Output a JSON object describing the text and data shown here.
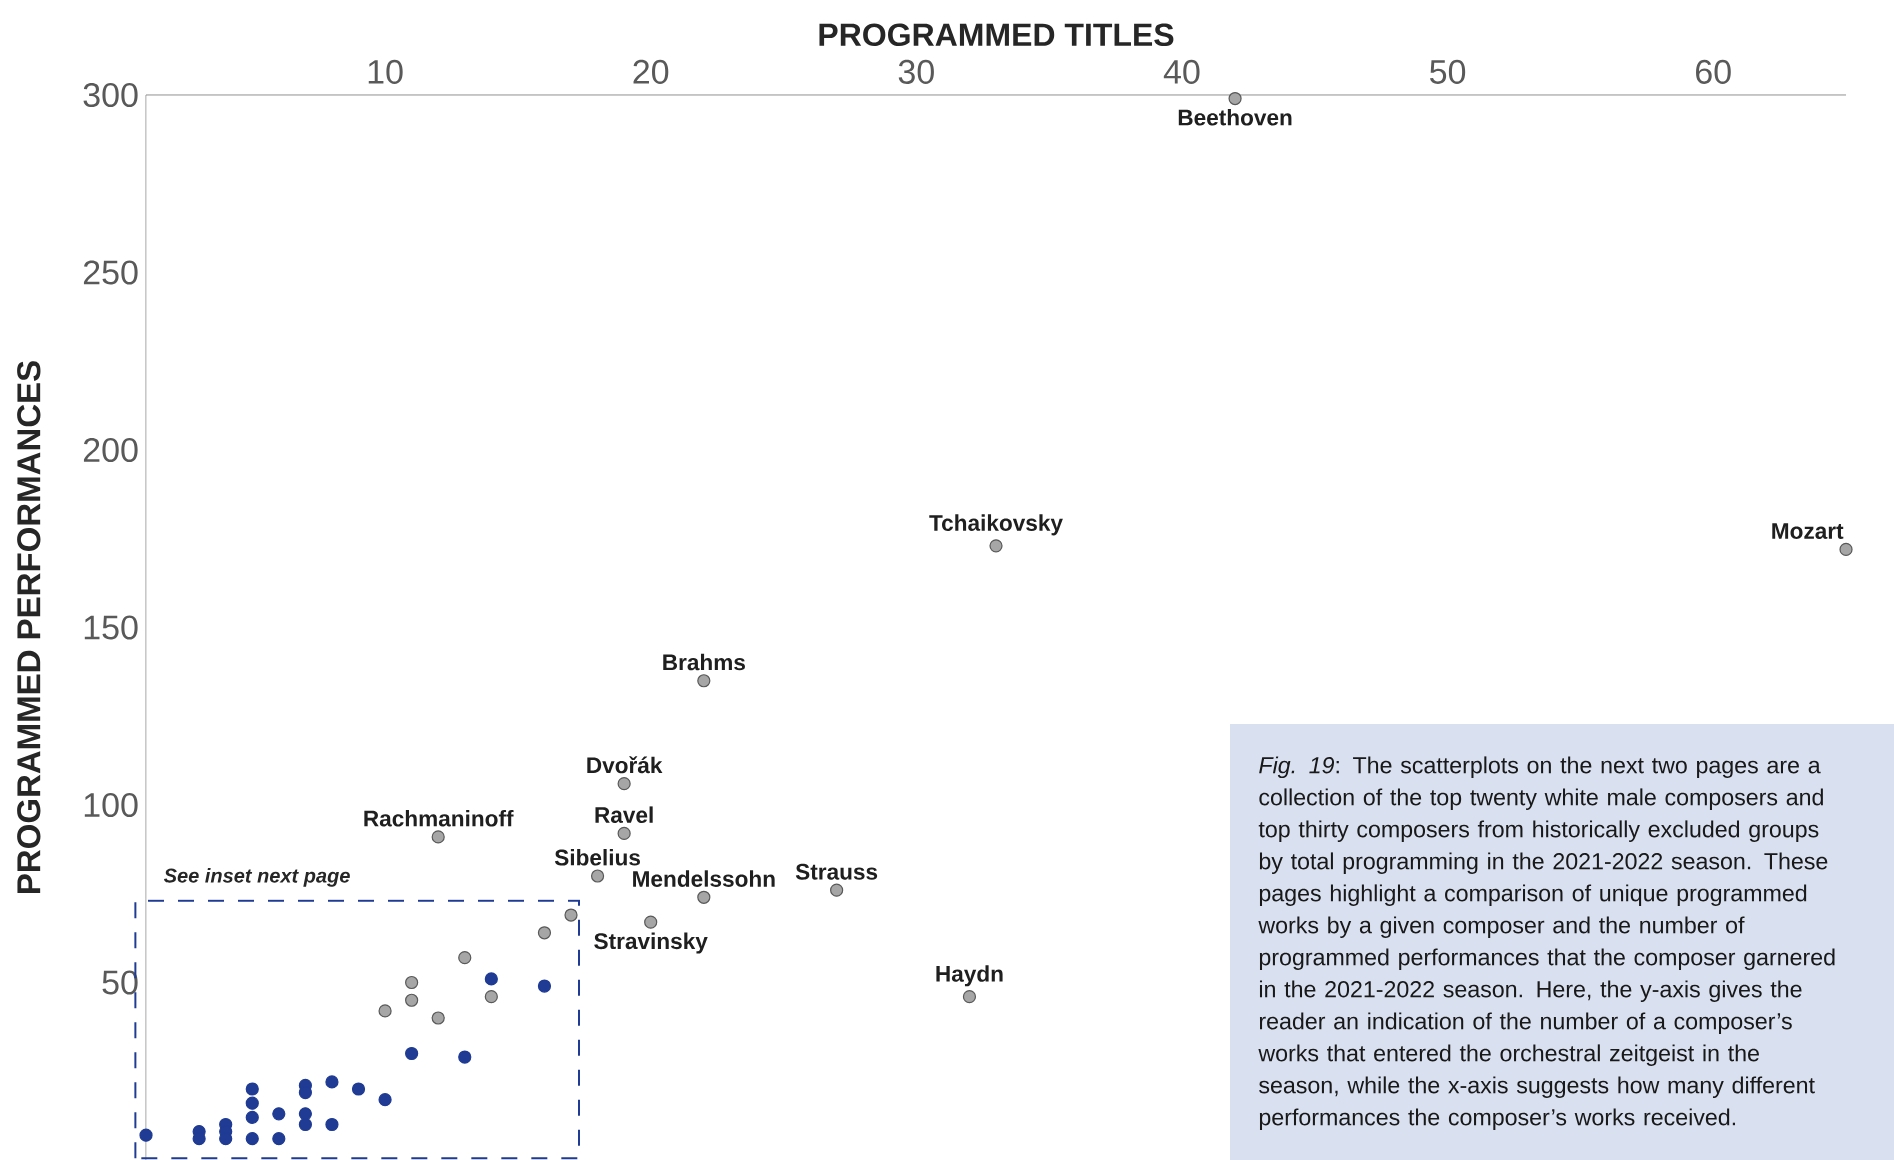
{
  "chart_data": {
    "type": "scatter",
    "xlabel": "PROGRAMMED TITLES",
    "ylabel": "PROGRAMMED PERFORMANCES",
    "xlim": [
      1,
      65
    ],
    "ylim": [
      0,
      300
    ],
    "xticks": [
      10,
      20,
      30,
      40,
      50,
      60
    ],
    "yticks": [
      50,
      100,
      150,
      200,
      250,
      300
    ],
    "grid": false,
    "series": [
      {
        "color": "#a6a6a6",
        "x": [
          42,
          33,
          65,
          22,
          19,
          19,
          12,
          18,
          22,
          27,
          20,
          32,
          17,
          16,
          13,
          11,
          11,
          10,
          12,
          14
        ],
        "values": [
          299,
          173,
          172,
          135,
          106,
          92,
          91,
          80,
          74,
          76,
          67,
          46,
          69,
          64,
          57,
          50,
          45,
          42,
          40,
          46
        ]
      },
      {
        "color": "#1f3b94",
        "x": [
          14,
          16,
          11,
          13,
          8,
          9,
          10,
          7,
          7,
          7,
          7,
          8,
          6,
          6,
          5,
          5,
          5,
          5,
          4,
          4,
          4,
          3,
          3,
          1
        ],
        "values": [
          51,
          49,
          30,
          29,
          22,
          20,
          17,
          21,
          19,
          13,
          10,
          10,
          13,
          6,
          20,
          16,
          12,
          6,
          10,
          8,
          6,
          8,
          6,
          7
        ]
      }
    ],
    "annotations": [
      {
        "text": "Beethoven",
        "x": 42,
        "y": 299
      },
      {
        "text": "Tchaikovsky",
        "x": 33,
        "y": 173
      },
      {
        "text": "Mozart",
        "x": 65,
        "y": 172
      },
      {
        "text": "Brahms",
        "x": 22,
        "y": 135
      },
      {
        "text": "Dvořák",
        "x": 19,
        "y": 106
      },
      {
        "text": "Ravel",
        "x": 19,
        "y": 92
      },
      {
        "text": "Rachmaninoff",
        "x": 12,
        "y": 91
      },
      {
        "text": "Sibelius",
        "x": 18,
        "y": 80
      },
      {
        "text": "Mendelssohn",
        "x": 22,
        "y": 74
      },
      {
        "text": "Strauss",
        "x": 27,
        "y": 76
      },
      {
        "text": "Stravinsky",
        "x": 20,
        "y": 67
      },
      {
        "text": "Haydn",
        "x": 32,
        "y": 46
      },
      "See inset next page",
      "*Fig. 19*: The scatterplots on the next two pages are a collection of the top twenty white male composers and top thirty composers from historically excluded groups by total programming in the 2021-2022 season. These pages highlight a comparison of unique programmed works by a given composer and the number of programmed performances that the composer garnered in the 2021-2022 season. Here, the y-axis gives the reader an indication of the number of a composer’s works that entered the orchestral zeitgeist in the season, while the x-axis suggests how many different performances the composer’s works received."
    ]
  }
}
